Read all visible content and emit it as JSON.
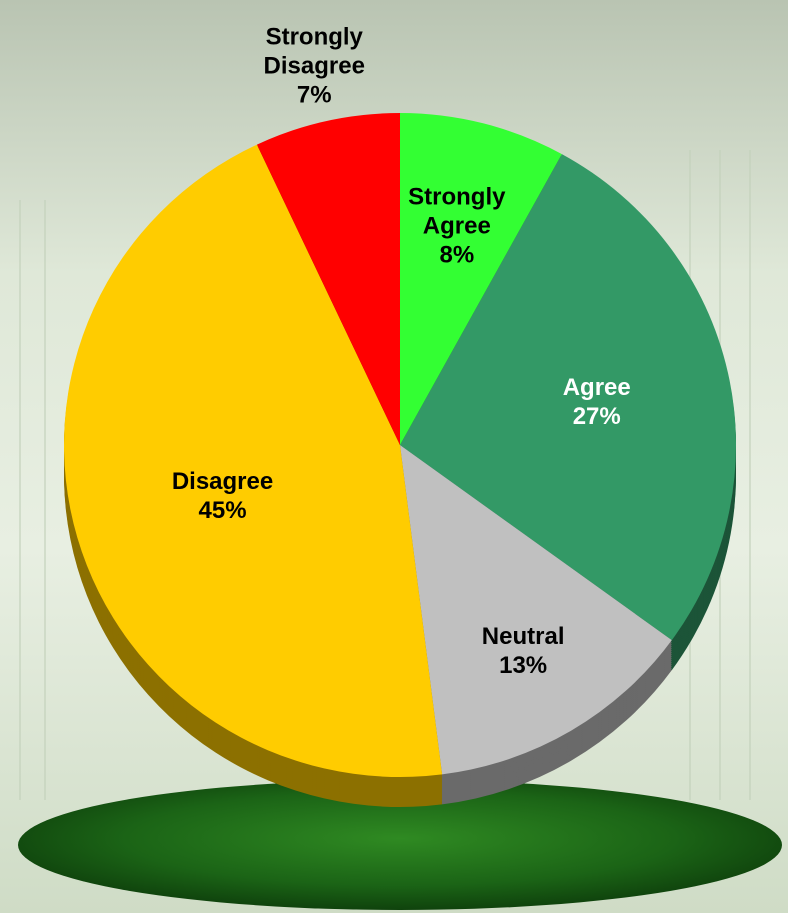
{
  "chart_data": {
    "type": "pie",
    "categories": [
      "Strongly Agree",
      "Agree",
      "Neutral",
      "Disagree",
      "Strongly Disagree"
    ],
    "values": [
      8,
      27,
      13,
      45,
      7
    ],
    "value_labels": [
      "8%",
      "27%",
      "13%",
      "45%",
      "7%"
    ],
    "colors": [
      "#33ff33",
      "#339966",
      "#c0c0c0",
      "#ffcc00",
      "#ff0000"
    ]
  }
}
